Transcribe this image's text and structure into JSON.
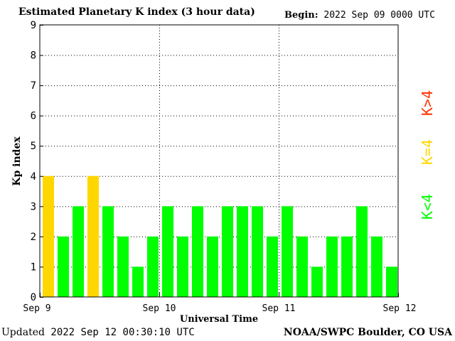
{
  "title": "Estimated Planetary K index (3 hour data)",
  "begin": {
    "label": "Begin:",
    "value": "2022 Sep 09 0000 UTC"
  },
  "updated": {
    "label": "Updated",
    "value": "2022 Sep 12 00:30:10 UTC"
  },
  "credit": "NOAA/SWPC Boulder, CO USA",
  "colors": {
    "low": "#00ff00",
    "storm": "#ffd700",
    "high": "#ff3300"
  },
  "chart_data": {
    "type": "bar",
    "xlabel": "Universal Time",
    "ylabel": "Kp index",
    "ylim": [
      0,
      9
    ],
    "yticks": [
      "0",
      "1",
      "2",
      "3",
      "4",
      "5",
      "6",
      "7",
      "8",
      "9"
    ],
    "xtick_labels": [
      "Sep 9",
      "Sep 10",
      "Sep 11",
      "Sep 12"
    ],
    "grid": true,
    "values": [
      4,
      2,
      3,
      4,
      3,
      2,
      1,
      2,
      3,
      2,
      3,
      2,
      3,
      3,
      3,
      2,
      3,
      2,
      1,
      2,
      2,
      3,
      2,
      1
    ],
    "legend": [
      {
        "label": "K<4",
        "color": "#00ff00"
      },
      {
        "label": "K=4",
        "color": "#ffd700"
      },
      {
        "label": "K>4",
        "color": "#ff3300"
      }
    ]
  }
}
